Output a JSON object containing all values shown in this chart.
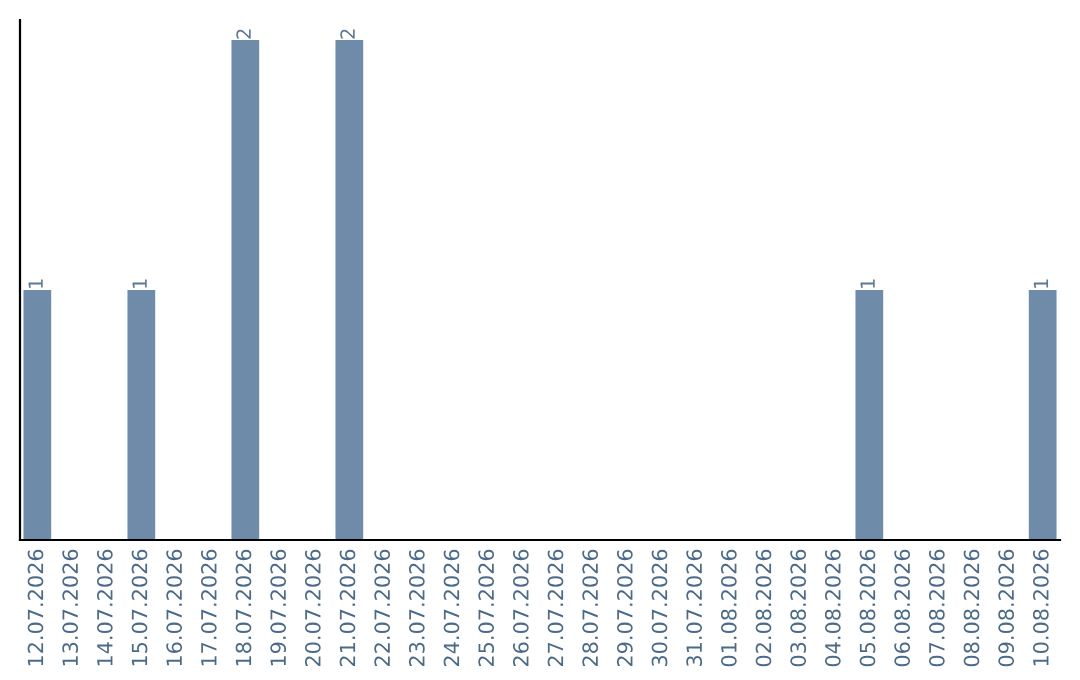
{
  "chart_data": {
    "type": "bar",
    "categories": [
      "12.07.2026",
      "13.07.2026",
      "14.07.2026",
      "15.07.2026",
      "16.07.2026",
      "17.07.2026",
      "18.07.2026",
      "19.07.2026",
      "20.07.2026",
      "21.07.2026",
      "22.07.2026",
      "23.07.2026",
      "24.07.2026",
      "25.07.2026",
      "26.07.2026",
      "27.07.2026",
      "28.07.2026",
      "29.07.2026",
      "30.07.2026",
      "31.07.2026",
      "01.08.2026",
      "02.08.2026",
      "03.08.2026",
      "04.08.2026",
      "05.08.2026",
      "06.08.2026",
      "07.08.2026",
      "08.08.2026",
      "09.08.2026",
      "10.08.2026"
    ],
    "values": [
      1,
      0,
      0,
      1,
      0,
      0,
      2,
      0,
      0,
      2,
      0,
      0,
      0,
      0,
      0,
      0,
      0,
      0,
      0,
      0,
      0,
      0,
      0,
      0,
      1,
      0,
      0,
      0,
      0,
      1
    ],
    "value_labels": [
      "1",
      null,
      null,
      "1",
      null,
      null,
      "2",
      null,
      null,
      "2",
      null,
      null,
      null,
      null,
      null,
      null,
      null,
      null,
      null,
      null,
      null,
      null,
      null,
      null,
      "1",
      null,
      null,
      null,
      null,
      "1"
    ],
    "color": "#6e8caa",
    "ylim": [
      0,
      2.08
    ],
    "tick_labels": "x",
    "grid": false,
    "legend": false
  }
}
